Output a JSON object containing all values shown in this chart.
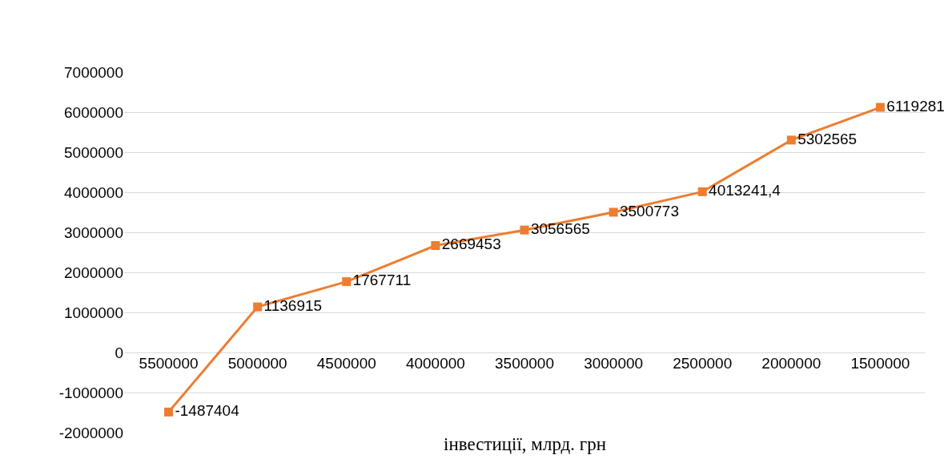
{
  "chart_data": {
    "type": "line",
    "xlabel": "інвестиції, млрд. грн",
    "categories": [
      "5500000",
      "5000000",
      "4500000",
      "4000000",
      "3500000",
      "3000000",
      "2500000",
      "2000000",
      "1500000"
    ],
    "series": [
      {
        "color": "#ed7d31",
        "values": [
          -1487404,
          1136915,
          1767711,
          2669453,
          3056565,
          3500773,
          4013241.4,
          5302565,
          6119281
        ],
        "value_labels": [
          "-1487404",
          "1136915",
          "1767711",
          "2669453",
          "3056565",
          "3500773",
          "4013241,4",
          "5302565",
          "6119281"
        ]
      }
    ],
    "ylim": [
      -2000000,
      7000000
    ],
    "yticks": [
      -2000000,
      -1000000,
      0,
      1000000,
      2000000,
      3000000,
      4000000,
      5000000,
      6000000,
      7000000
    ],
    "grid": "y",
    "marker": "square",
    "line_style": "solid"
  }
}
